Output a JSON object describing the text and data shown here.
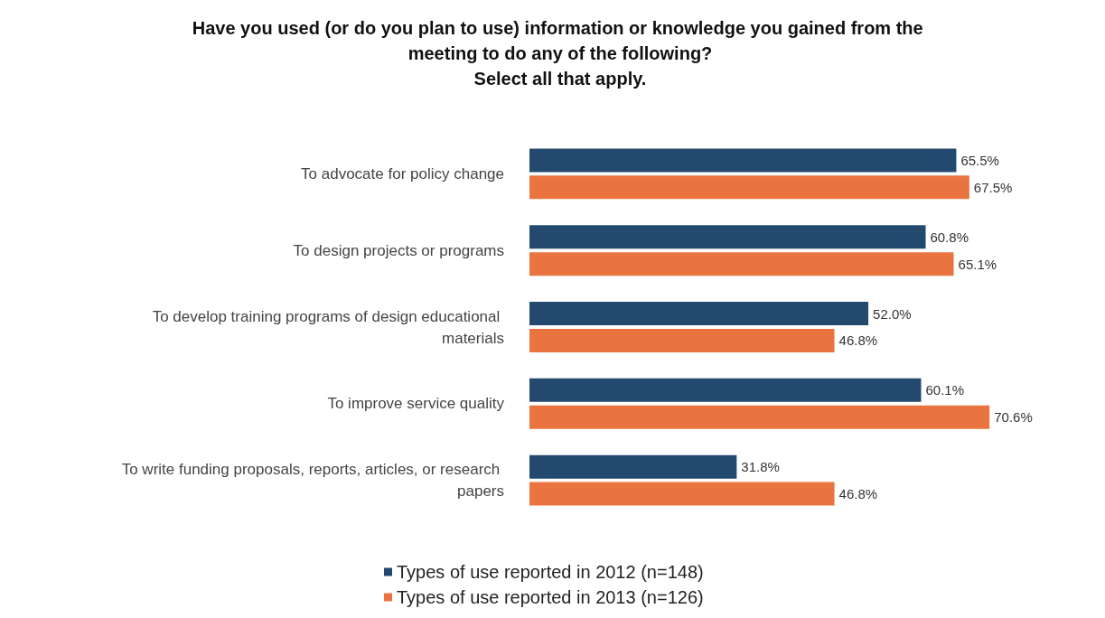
{
  "chart_data": {
    "type": "bar",
    "orientation": "horizontal",
    "title": "Have you used (or do you plan to use) information or knowledge you gained from the meeting to do any of the following?\nSelect all that apply.",
    "categories": [
      "To advocate for policy change",
      "To design projects or programs",
      "To develop training programs of design educational materials",
      "To improve service quality",
      "To write funding proposals, reports, articles, or research papers"
    ],
    "series": [
      {
        "name": "Types of use reported in 2012 (n=148)",
        "color": "#23496e",
        "values": [
          65.5,
          60.8,
          52.0,
          60.1,
          31.8
        ],
        "value_labels": [
          "65.5%",
          "60.8%",
          "52.0%",
          "60.1%",
          "31.8%"
        ]
      },
      {
        "name": "Types of use reported in 2013 (n=126)",
        "color": "#ea7440",
        "values": [
          67.5,
          65.1,
          46.8,
          70.6,
          46.8
        ],
        "value_labels": [
          "67.5%",
          "65.1%",
          "46.8%",
          "70.6%",
          "46.8%"
        ]
      }
    ],
    "legend": "bottom"
  }
}
